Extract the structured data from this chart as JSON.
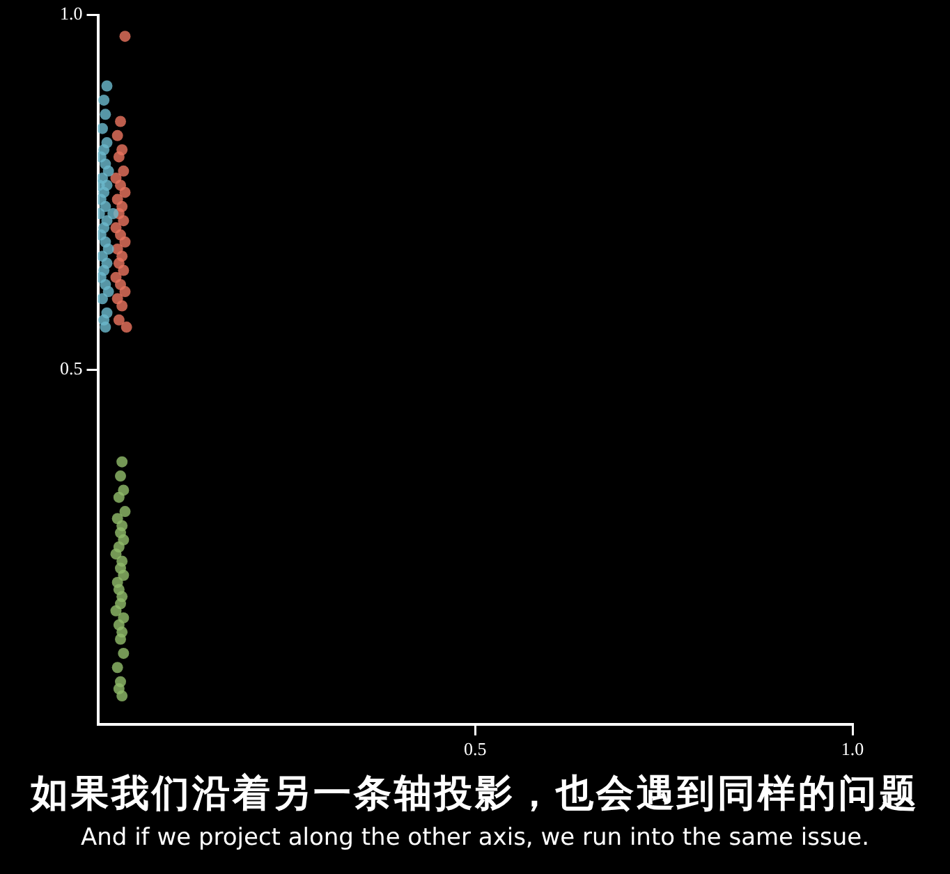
{
  "chart_data": {
    "type": "scatter",
    "xlim": [
      0,
      1
    ],
    "ylim": [
      0,
      1
    ],
    "xticks": [
      {
        "value": 0.5,
        "label": "0.5"
      },
      {
        "value": 1,
        "label": "1.0"
      }
    ],
    "yticks": [
      {
        "value": 0.5,
        "label": "0.5"
      },
      {
        "value": 1,
        "label": "1.0"
      }
    ],
    "grid": false,
    "legend": false,
    "marker": "circle",
    "series": [
      {
        "color": "#6bb8cc",
        "x": [
          0.012,
          0.008,
          0.01,
          0.006,
          0.012,
          0.008,
          0.004,
          0.01,
          0.014,
          0.006,
          0.002,
          0.012,
          0.008,
          0.004,
          0.01,
          0.02,
          0.002,
          0.012,
          0.008,
          0.004,
          0.01,
          0.014,
          0.006,
          0.012,
          0.008,
          0.004,
          0.01,
          0.014,
          0.006,
          0.012,
          0.008,
          0.01
        ],
        "values": [
          0.9,
          0.88,
          0.86,
          0.84,
          0.82,
          0.81,
          0.8,
          0.79,
          0.78,
          0.77,
          0.76,
          0.76,
          0.75,
          0.74,
          0.73,
          0.72,
          0.72,
          0.71,
          0.7,
          0.69,
          0.68,
          0.67,
          0.66,
          0.65,
          0.64,
          0.63,
          0.62,
          0.61,
          0.6,
          0.58,
          0.57,
          0.56
        ]
      },
      {
        "color": "#e8735f",
        "x": [
          0.036,
          0.03,
          0.026,
          0.032,
          0.028,
          0.034,
          0.024,
          0.03,
          0.036,
          0.026,
          0.032,
          0.028,
          0.034,
          0.024,
          0.03,
          0.036,
          0.026,
          0.032,
          0.028,
          0.034,
          0.024,
          0.03,
          0.036,
          0.026,
          0.032,
          0.028,
          0.038
        ],
        "values": [
          0.97,
          0.85,
          0.83,
          0.81,
          0.8,
          0.78,
          0.77,
          0.76,
          0.75,
          0.74,
          0.73,
          0.72,
          0.71,
          0.7,
          0.69,
          0.68,
          0.67,
          0.66,
          0.65,
          0.64,
          0.63,
          0.62,
          0.61,
          0.6,
          0.59,
          0.57,
          0.56
        ]
      },
      {
        "color": "#8fba6a",
        "x": [
          0.032,
          0.03,
          0.034,
          0.028,
          0.036,
          0.026,
          0.032,
          0.03,
          0.034,
          0.028,
          0.024,
          0.032,
          0.03,
          0.034,
          0.026,
          0.028,
          0.032,
          0.03,
          0.024,
          0.034,
          0.028,
          0.032,
          0.03,
          0.034,
          0.026,
          0.03,
          0.028,
          0.032
        ],
        "values": [
          0.37,
          0.35,
          0.33,
          0.32,
          0.3,
          0.29,
          0.28,
          0.27,
          0.26,
          0.25,
          0.24,
          0.23,
          0.22,
          0.21,
          0.2,
          0.19,
          0.18,
          0.17,
          0.16,
          0.15,
          0.14,
          0.13,
          0.12,
          0.1,
          0.08,
          0.06,
          0.05,
          0.04
        ]
      }
    ],
    "annotations": [
      "如果我们沿着另一条轴投影，也会遇到同样的问题",
      "And if we project along the other axis, we run into the same issue."
    ]
  }
}
